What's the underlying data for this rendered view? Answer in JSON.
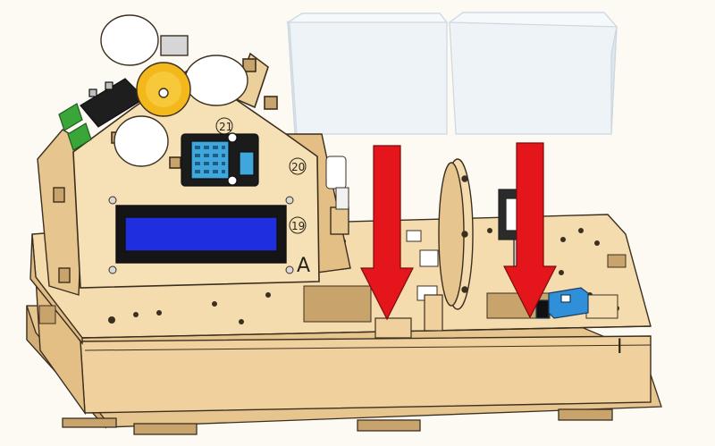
{
  "labels": {
    "house_number_top": "21",
    "house_number_side": "20",
    "house_number_lcd": "19",
    "house_letter": "A",
    "base_roman": "I"
  },
  "colors": {
    "wood": "#f1d5a4",
    "wood_dark": "#d9b680",
    "wood_shadow": "#c9a36c",
    "edge": "#3b2f1f",
    "lcd_blue": "#1f2fe0",
    "lcd_frame": "#151515",
    "sensor_blue": "#3fa7dc",
    "terminal_blue": "#2f8fd8",
    "fan_white": "#ffffff",
    "fan_hub": "#f3b81c",
    "green_terminal": "#3aa63a",
    "arrow_red": "#e4161b",
    "acrylic": "#e3ebf1"
  },
  "icons": {
    "left_arrow": "down-arrow-icon",
    "right_arrow": "down-arrow-icon",
    "fan": "fan-icon",
    "lcd": "lcd-display-icon",
    "sensor": "temperature-humidity-sensor-icon"
  }
}
